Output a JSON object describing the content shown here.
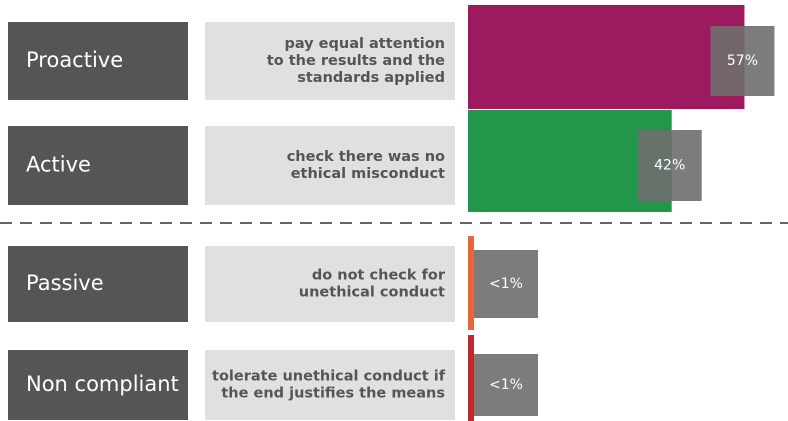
{
  "chart_data": {
    "type": "bar",
    "categories": [
      "Proactive",
      "Active",
      "Passive",
      "Non compliant"
    ],
    "descriptions": [
      [
        "pay equal attention",
        "to the results and the",
        "standards applied"
      ],
      [
        "check there was no",
        "ethical misconduct"
      ],
      [
        "do not check for",
        "unethical conduct"
      ],
      [
        "tolerate unethical conduct if",
        "the end justifies the means"
      ]
    ],
    "values": [
      57,
      42,
      0.5,
      0.5
    ],
    "value_labels": [
      "57%",
      "42%",
      "<1%",
      "<1%"
    ],
    "colors": [
      "#9e1a5e",
      "#22964a",
      "#e8673a",
      "#c0282f"
    ]
  }
}
